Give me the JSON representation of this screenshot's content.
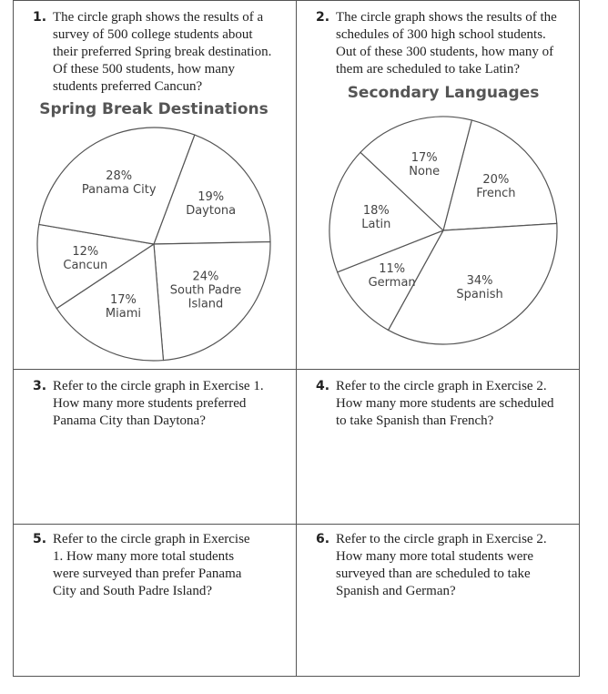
{
  "problems": [
    {
      "number": "1.",
      "text": "The circle graph shows the results of a survey of 500 college students about their preferred Spring break destination. Of these 500 students, how many students preferred Cancun?"
    },
    {
      "number": "2.",
      "text": "The circle graph shows the results of the schedules of 300 high school students. Out of these 300 students, how many of them are scheduled to take Latin?"
    },
    {
      "number": "3.",
      "text": "Refer to the circle graph in Exercise 1. How many more students preferred Panama City than Daytona?"
    },
    {
      "number": "4.",
      "text": "Refer to the circle graph in Exercise 2. How many more students are scheduled to take Spanish than French?"
    },
    {
      "number": "5.",
      "text": "Refer to the circle graph in Exercise 1. How many more total students were surveyed than prefer Panama City and South Padre Island?"
    },
    {
      "number": "6.",
      "text": "Refer to the circle graph in Exercise 2. How many more total students were surveyed than are scheduled to take Spanish and German?"
    }
  ],
  "chart_data": [
    {
      "type": "pie",
      "title": "Spring Break Destinations",
      "categories": [
        "Daytona",
        "South Padre Island",
        "Miami",
        "Cancun",
        "Panama City"
      ],
      "values": [
        19,
        24,
        17,
        12,
        28
      ],
      "value_labels": [
        "19%",
        "24%",
        "17%",
        "12%",
        "28%"
      ]
    },
    {
      "type": "pie",
      "title": "Secondary Languages",
      "categories": [
        "French",
        "Spanish",
        "German",
        "Latin",
        "None"
      ],
      "values": [
        20,
        34,
        11,
        18,
        17
      ],
      "value_labels": [
        "20%",
        "34%",
        "11%",
        "18%",
        "17%"
      ]
    }
  ]
}
